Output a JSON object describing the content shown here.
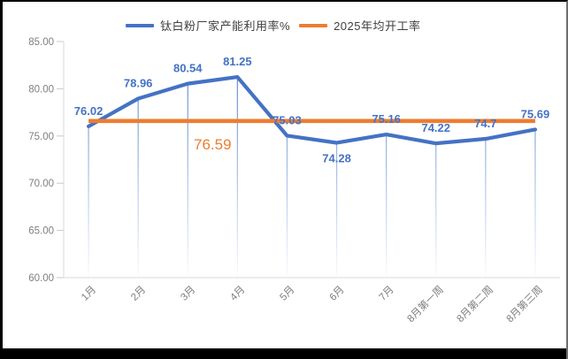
{
  "legend": {
    "items": [
      {
        "label": "钛白粉厂家产能利用率%",
        "color": "#4472C4"
      },
      {
        "label": "2025年均开工率",
        "color": "#ED7D31"
      }
    ]
  },
  "chart_data": {
    "type": "line",
    "title": "",
    "xlabel": "",
    "ylabel": "",
    "categories": [
      "1月",
      "2月",
      "3月",
      "4月",
      "5月",
      "6月",
      "7月",
      "8月第一周",
      "8月第二周",
      "8月第三周"
    ],
    "series": [
      {
        "name": "钛白粉厂家产能利用率%",
        "color": "#4472C4",
        "values": [
          76.02,
          78.96,
          80.54,
          81.25,
          75.03,
          74.28,
          75.16,
          74.22,
          74.7,
          75.69
        ],
        "value_labels": [
          "76.02",
          "78.96",
          "80.54",
          "81.25",
          "75.03",
          "74.28",
          "75.16",
          "74.22",
          "74.7",
          "75.69"
        ],
        "label_placements": [
          "above",
          "above",
          "above",
          "above",
          "above",
          "below",
          "above",
          "above",
          "above",
          "above"
        ]
      },
      {
        "name": "2025年均开工率",
        "color": "#ED7D31",
        "constant_value": 76.59,
        "value_label": "76.59",
        "label_between_categories": [
          2,
          3
        ]
      }
    ],
    "ylim": [
      60,
      85
    ],
    "ytick_step": 5,
    "ytick_labels": [
      "85.00",
      "80.00",
      "75.00",
      "70.00",
      "65.00",
      "60.00"
    ],
    "xtick_rotation_deg": -45,
    "grid": "vertical-drop-lines",
    "legend_position": "top-center",
    "colors": {
      "axis_line": "#d9d9d9",
      "tick_mark": "#c3c9d5",
      "tick_text": "#7f7f7f",
      "drop_line": "#4472C4",
      "legend_text": "#404040",
      "frame_border": "#000000"
    }
  }
}
